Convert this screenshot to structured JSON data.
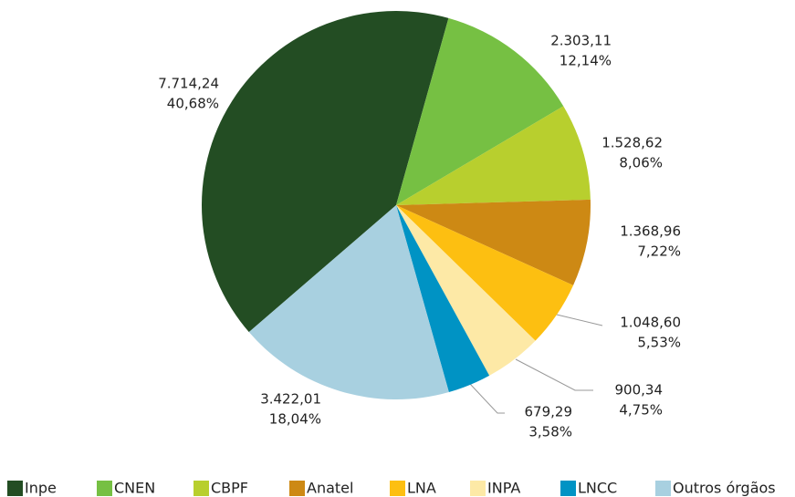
{
  "chart_data": {
    "type": "pie",
    "categories": [
      "Inpe",
      "CNEN",
      "CBPF",
      "Anatel",
      "LNA",
      "INPA",
      "LNCC",
      "Outros órgãos"
    ],
    "values": [
      7714.24,
      2303.11,
      1528.62,
      1368.96,
      1048.6,
      900.34,
      679.29,
      3422.01
    ],
    "value_labels": [
      "7.714,24",
      "2.303,11",
      "1.528,62",
      "1.368,96",
      "1.048,60",
      "900,34",
      "679,29",
      "3.422,01"
    ],
    "percents": [
      40.68,
      12.14,
      8.06,
      7.22,
      5.53,
      4.75,
      3.58,
      18.04
    ],
    "percent_labels": [
      "40,68%",
      "12,14%",
      "8,06%",
      "7,22%",
      "5,53%",
      "4,75%",
      "3,58%",
      "18,04%"
    ],
    "colors": [
      "#234d23",
      "#76c043",
      "#b8cf2e",
      "#cd8914",
      "#fdbf11",
      "#fde9a6",
      "#0093c4",
      "#a8d0e0"
    ],
    "legend": "bottom"
  }
}
